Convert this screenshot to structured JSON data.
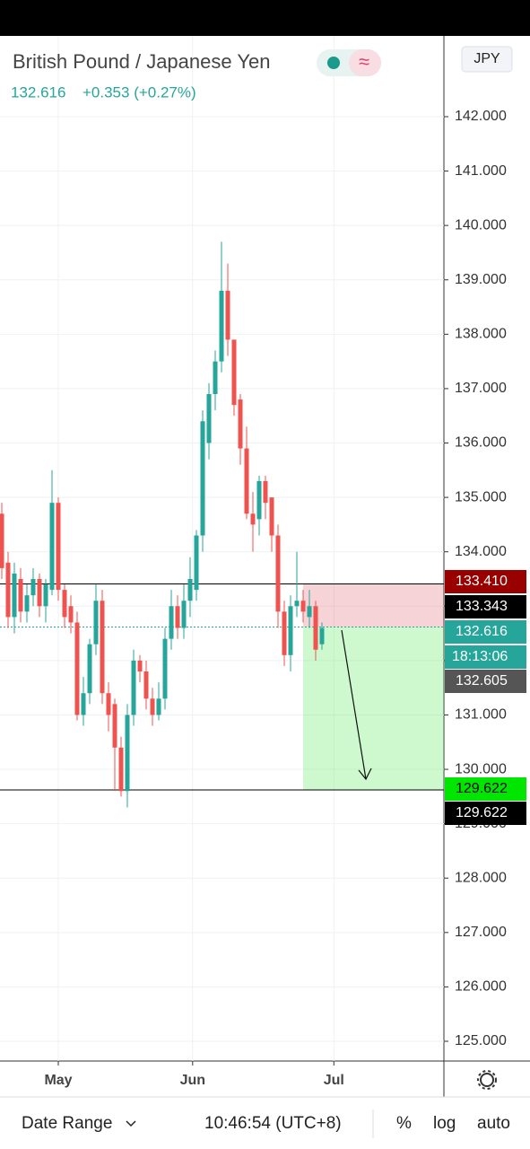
{
  "header": {
    "title": "British Pound / Japanese Yen",
    "price": "132.616",
    "change": "+0.353 (+0.27%)",
    "currency": "JPY"
  },
  "chart_data": {
    "type": "candlestick",
    "open": [
      134.7,
      133.8,
      132.8,
      133.5,
      132.9,
      133.2,
      133.5,
      133.0,
      133.3,
      134.9,
      133.3,
      133.0,
      132.7,
      131.0,
      131.4,
      132.3,
      133.1,
      131.4,
      131.2,
      130.4,
      129.6,
      131.0,
      132.0,
      131.8,
      131.3,
      131.0,
      131.3,
      132.4,
      133.0,
      132.6,
      133.1,
      133.3,
      134.3,
      136.0,
      136.9,
      137.5,
      138.8,
      137.9,
      136.8,
      135.9,
      134.7,
      134.6,
      135.3,
      135.0,
      134.3,
      132.9,
      132.1,
      133.0,
      133.1,
      132.8,
      133.0,
      132.3
    ],
    "high": [
      134.9,
      134.0,
      133.8,
      133.7,
      133.4,
      133.7,
      133.6,
      133.5,
      135.5,
      135.0,
      133.4,
      133.2,
      132.9,
      131.7,
      132.4,
      133.4,
      133.3,
      131.6,
      131.3,
      130.6,
      131.2,
      132.2,
      132.1,
      132.0,
      131.5,
      131.6,
      132.6,
      133.3,
      133.2,
      133.4,
      133.9,
      134.4,
      136.6,
      137.1,
      137.7,
      139.7,
      139.3,
      137.9,
      136.9,
      136.3,
      135.1,
      135.4,
      135.4,
      134.9,
      134.5,
      133.1,
      133.2,
      134.0,
      133.3,
      133.3,
      133.1,
      132.7
    ],
    "low": [
      133.5,
      132.6,
      132.5,
      132.7,
      132.7,
      133.0,
      132.8,
      132.7,
      133.2,
      133.1,
      132.6,
      132.5,
      130.9,
      130.8,
      131.2,
      132.1,
      131.2,
      130.7,
      129.6,
      129.5,
      129.3,
      130.8,
      131.6,
      131.1,
      130.8,
      130.9,
      131.1,
      132.2,
      132.4,
      132.4,
      132.8,
      133.1,
      134.0,
      135.7,
      136.6,
      137.3,
      137.6,
      136.5,
      135.6,
      134.6,
      134.0,
      134.3,
      134.6,
      134.0,
      132.6,
      131.9,
      131.8,
      132.8,
      132.7,
      132.6,
      132.0,
      132.2
    ],
    "close": [
      133.7,
      132.8,
      133.6,
      132.9,
      133.2,
      133.5,
      133.0,
      133.4,
      134.9,
      133.3,
      132.8,
      132.7,
      131.0,
      131.4,
      132.3,
      133.1,
      131.4,
      131.0,
      130.4,
      129.6,
      131.0,
      132.0,
      131.8,
      131.3,
      131.0,
      131.3,
      132.4,
      133.0,
      132.6,
      133.1,
      133.5,
      134.3,
      136.4,
      136.9,
      137.5,
      138.8,
      137.9,
      136.7,
      135.9,
      134.7,
      134.5,
      135.3,
      134.9,
      134.3,
      132.9,
      132.1,
      133.0,
      133.1,
      132.9,
      133.0,
      132.2,
      132.6
    ],
    "up_color": "#26a69a",
    "down_color": "#ef5350",
    "xlim": [
      -0.286,
      70.43
    ],
    "ylim": [
      124.637,
      143.485
    ],
    "xticks": [
      {
        "value": 9,
        "label": "May"
      },
      {
        "value": 30.4,
        "label": "Jun"
      },
      {
        "value": 52.9,
        "label": "Jul"
      }
    ],
    "yticks": [
      {
        "value": 125,
        "label": "125.000"
      },
      {
        "value": 126,
        "label": "126.000"
      },
      {
        "value": 127,
        "label": "127.000"
      },
      {
        "value": 128,
        "label": "128.000"
      },
      {
        "value": 129,
        "label": "129.000"
      },
      {
        "value": 130,
        "label": "130.000"
      },
      {
        "value": 131,
        "label": "131.000"
      },
      {
        "value": 132,
        "label": "132.000"
      },
      {
        "value": 133,
        "label": "133.000"
      },
      {
        "value": 134,
        "label": "134.000"
      },
      {
        "value": 135,
        "label": "135.000"
      },
      {
        "value": 136,
        "label": "136.000"
      },
      {
        "value": 137,
        "label": "137.000"
      },
      {
        "value": 138,
        "label": "138.000"
      },
      {
        "value": 139,
        "label": "139.000"
      },
      {
        "value": 140,
        "label": "140.000"
      },
      {
        "value": 141,
        "label": "141.000"
      },
      {
        "value": 142,
        "label": "142.000"
      }
    ],
    "grid": true,
    "price_labels": [
      {
        "value": 133.41,
        "label": "133.410",
        "color": "#990000"
      },
      {
        "value": 133.343,
        "label": "133.343",
        "color": "#000000"
      },
      {
        "value": 132.616,
        "label": "132.616",
        "color": "#26a69a"
      },
      {
        "value": 132.605,
        "label": "132.605",
        "color": "#555555"
      },
      {
        "value": 129.622,
        "label": "129.622",
        "color": "#00e600"
      },
      {
        "value": 129.622,
        "label": "129.622",
        "color": "#000000"
      }
    ],
    "countdown": "18:13:06"
  },
  "toolbar": {
    "date_range": "Date Range",
    "time": "10:46:54 (UTC+8)",
    "percent": "%",
    "log": "log",
    "auto": "auto"
  }
}
